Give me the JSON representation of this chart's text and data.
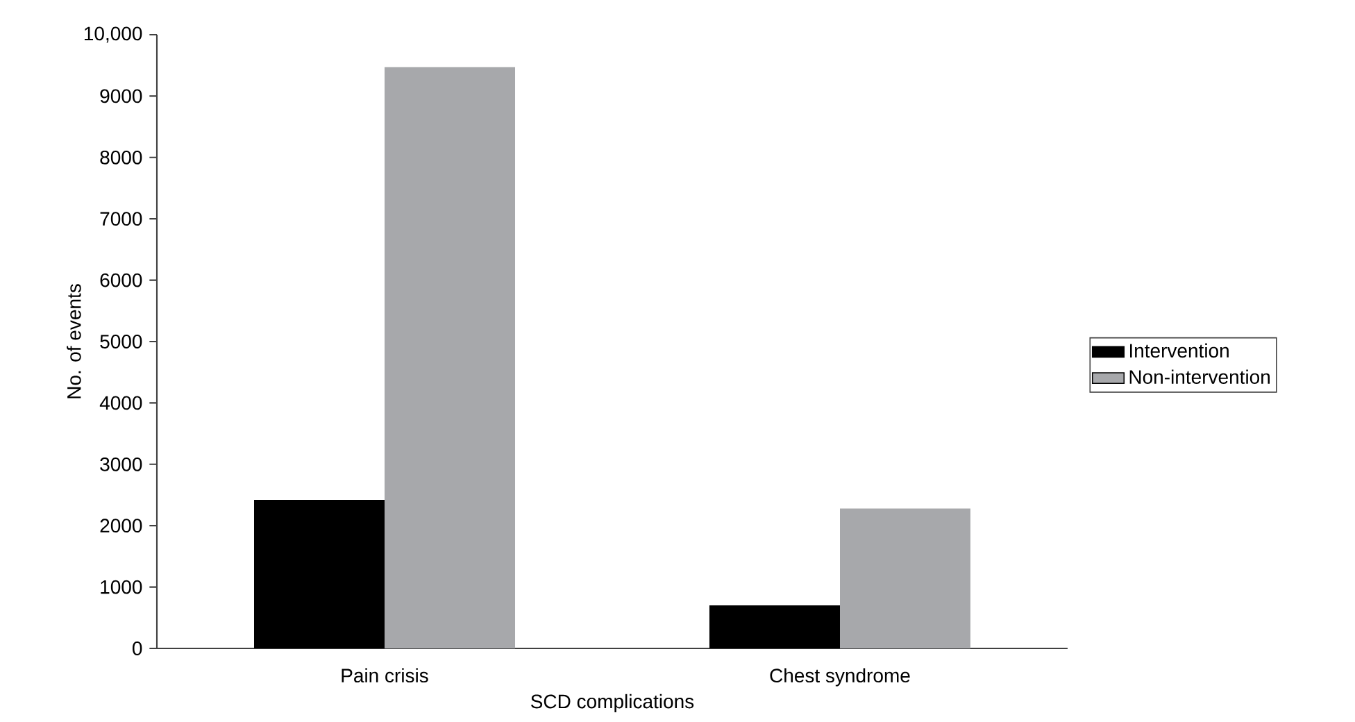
{
  "chart_data": {
    "type": "bar",
    "xlabel": "SCD complications",
    "ylabel": "No. of events",
    "categories": [
      "Pain crisis",
      "Chest syndrome"
    ],
    "series": [
      {
        "name": "Intervention",
        "color": "#000000",
        "values": [
          2420,
          700
        ]
      },
      {
        "name": "Non-intervention",
        "color": "#a7a8ab",
        "values": [
          9470,
          2280
        ]
      }
    ],
    "ylim": [
      0,
      10000
    ],
    "yticks": [
      0,
      1000,
      2000,
      3000,
      4000,
      5000,
      6000,
      7000,
      8000,
      9000,
      {
        "value": 10000,
        "label": "10,000"
      }
    ],
    "grid": false,
    "legend": "right"
  }
}
